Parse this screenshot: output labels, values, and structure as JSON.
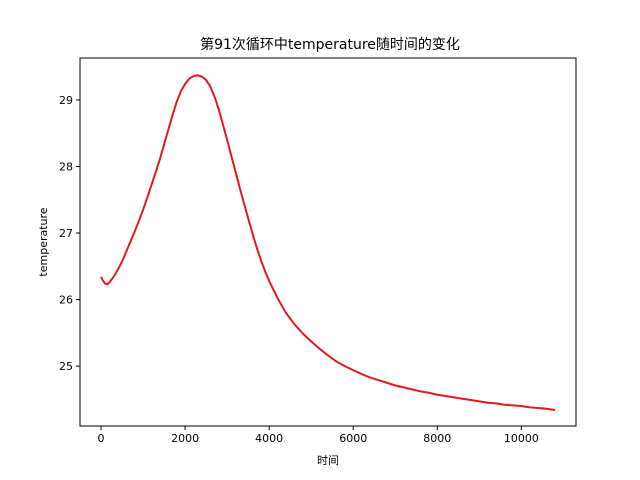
{
  "chart_data": {
    "type": "line",
    "title": "第91次循环中temperature随时间的变化",
    "xlabel": "时间",
    "ylabel": "temperature",
    "xlim": [
      -500,
      11300
    ],
    "ylim": [
      24.1,
      29.63
    ],
    "xticks": [
      0,
      2000,
      4000,
      6000,
      8000,
      10000
    ],
    "xtick_labels": [
      "0",
      "2000",
      "4000",
      "6000",
      "8000",
      "10000"
    ],
    "yticks": [
      25,
      26,
      27,
      28,
      29
    ],
    "ytick_labels": [
      "25",
      "26",
      "27",
      "28",
      "29"
    ],
    "grid": false,
    "line_color": "#e31a1c",
    "series": [
      {
        "name": "",
        "x": [
          0,
          50,
          100,
          150,
          200,
          300,
          400,
          500,
          600,
          700,
          800,
          900,
          1000,
          1100,
          1200,
          1300,
          1400,
          1500,
          1600,
          1700,
          1800,
          1900,
          2000,
          2100,
          2200,
          2300,
          2400,
          2500,
          2600,
          2700,
          2800,
          2900,
          3000,
          3100,
          3200,
          3300,
          3400,
          3500,
          3600,
          3700,
          3800,
          3900,
          4000,
          4200,
          4400,
          4600,
          4800,
          5000,
          5200,
          5400,
          5600,
          5800,
          6000,
          6200,
          6400,
          6600,
          6800,
          7000,
          7200,
          7400,
          7600,
          7800,
          8000,
          8200,
          8400,
          8600,
          8800,
          9000,
          9200,
          9400,
          9600,
          9800,
          10000,
          10200,
          10400,
          10600,
          10800
        ],
        "y": [
          26.34,
          26.28,
          26.24,
          26.23,
          26.26,
          26.34,
          26.45,
          26.57,
          26.72,
          26.87,
          27.02,
          27.18,
          27.35,
          27.53,
          27.72,
          27.91,
          28.11,
          28.33,
          28.55,
          28.77,
          28.97,
          29.13,
          29.24,
          29.32,
          29.36,
          29.37,
          29.35,
          29.3,
          29.2,
          29.05,
          28.86,
          28.63,
          28.4,
          28.16,
          27.92,
          27.68,
          27.45,
          27.22,
          27.0,
          26.79,
          26.6,
          26.43,
          26.28,
          26.02,
          25.8,
          25.63,
          25.49,
          25.37,
          25.26,
          25.16,
          25.07,
          25.0,
          24.94,
          24.88,
          24.83,
          24.79,
          24.75,
          24.71,
          24.68,
          24.65,
          24.62,
          24.6,
          24.57,
          24.55,
          24.53,
          24.51,
          24.49,
          24.47,
          24.45,
          24.44,
          24.42,
          24.41,
          24.4,
          24.38,
          24.37,
          24.36,
          24.34
        ]
      }
    ]
  }
}
